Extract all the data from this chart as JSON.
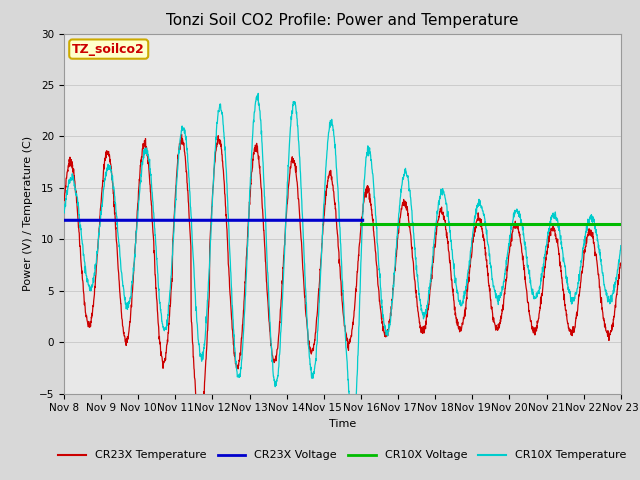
{
  "title": "Tonzi Soil CO2 Profile: Power and Temperature",
  "ylabel": "Power (V) / Temperature (C)",
  "xlabel": "Time",
  "ylim": [
    -5,
    30
  ],
  "annotation": "TZ_soilco2",
  "annotation_color": "#cc0000",
  "annotation_bg": "#ffffcc",
  "annotation_border": "#ccaa00",
  "grid_color": "#cccccc",
  "fig_bg_color": "#d8d8d8",
  "plot_bg": "#e8e8e8",
  "cr23x_temp_color": "#cc0000",
  "cr23x_volt_color": "#0000cc",
  "cr10x_volt_color": "#00bb00",
  "cr10x_temp_color": "#00cccc",
  "cr23x_volt_value": 11.85,
  "cr10x_volt_value": 11.5,
  "tick_labels": [
    "Nov 8",
    "Nov 9",
    "Nov 10",
    "Nov 11",
    "Nov 12",
    "Nov 13",
    "Nov 14",
    "Nov 15",
    "Nov 16",
    "Nov 17",
    "Nov 18",
    "Nov 19",
    "Nov 20",
    "Nov 21",
    "Nov 22",
    "Nov 23"
  ],
  "legend_entries": [
    "CR23X Temperature",
    "CR23X Voltage",
    "CR10X Voltage",
    "CR10X Temperature"
  ],
  "title_fontsize": 11,
  "label_fontsize": 8,
  "tick_fontsize": 7.5
}
